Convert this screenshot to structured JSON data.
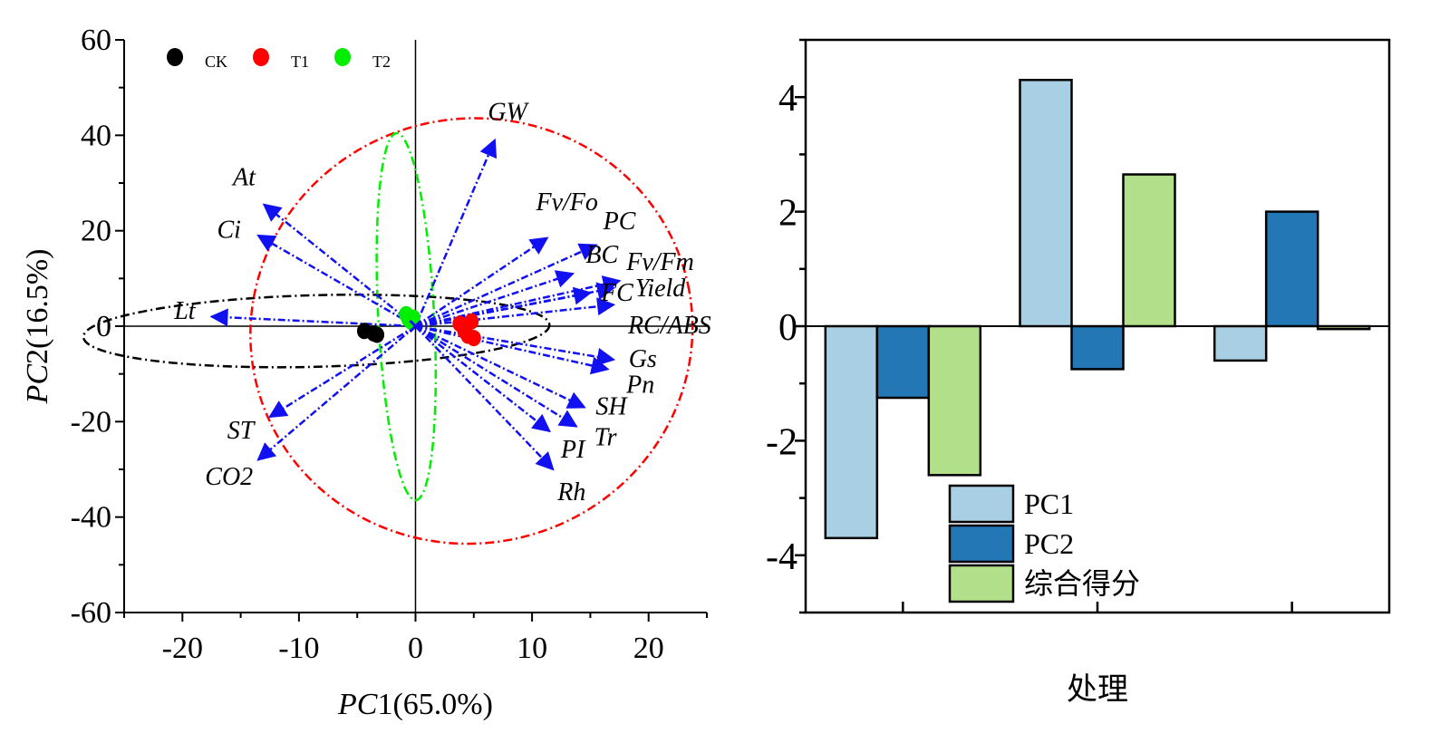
{
  "chart_data": [
    {
      "type": "scatter",
      "subtype": "pca-biplot",
      "xlabel_italic": "PC",
      "xlabel_rest": "1(65.0%)",
      "ylabel_italic": "PC",
      "ylabel_rest": "2(16.5%)",
      "xlim": [
        -25,
        25
      ],
      "ylim": [
        -60,
        60
      ],
      "xticks": [
        -20,
        -10,
        0,
        10,
        20
      ],
      "yticks": [
        -60,
        -40,
        -20,
        0,
        20,
        40,
        60
      ],
      "groups": [
        {
          "name": "CK",
          "color": "#000000",
          "points": [
            [
              -4.4,
              -1.0
            ],
            [
              -3.6,
              -1.5
            ],
            [
              -3.3,
              -1.8
            ]
          ],
          "ellipse": {
            "cx": -8.5,
            "cy": -1,
            "rx": 20,
            "ry": 7.5,
            "angle": -1.5
          }
        },
        {
          "name": "T1",
          "color": "#ff0000",
          "points": [
            [
              3.8,
              0.5
            ],
            [
              4.2,
              -1.0
            ],
            [
              4.5,
              -2.0
            ],
            [
              4.8,
              1.0
            ],
            [
              5.0,
              -2.5
            ]
          ],
          "ellipse": {
            "cx": 4.8,
            "cy": -1,
            "rx": 19,
            "ry": 44.5,
            "angle": -12
          }
        },
        {
          "name": "T2",
          "color": "#00ee00",
          "points": [
            [
              -0.8,
              2.5
            ],
            [
              -0.6,
              1.5
            ],
            [
              -0.4,
              1.0
            ],
            [
              -0.2,
              1.8
            ]
          ],
          "ellipse": {
            "cx": -0.8,
            "cy": 2,
            "rx": 2.4,
            "ry": 38.5,
            "angle": -3
          }
        }
      ],
      "loadings": [
        {
          "name": "GW",
          "x": 6.8,
          "y": 39,
          "italic": false,
          "lx": 7.9,
          "ly": 43.2
        },
        {
          "name": "At",
          "x": -13,
          "y": 25.5,
          "italic": true,
          "lx": -14.7,
          "ly": 29.5
        },
        {
          "name": "Ci",
          "x": -13.5,
          "y": 19,
          "italic": true,
          "lx": -16,
          "ly": 18.5
        },
        {
          "name": "Lt",
          "x": -17.5,
          "y": 2,
          "italic": true,
          "lx": -19.8,
          "ly": 1.5
        },
        {
          "name": "Fv/Fo",
          "x": 11.3,
          "y": 18.5,
          "italic": true,
          "lx": 13,
          "ly": 24.3
        },
        {
          "name": "PC",
          "x": 15.5,
          "y": 17,
          "italic": true,
          "lx": 17.5,
          "ly": 20.3
        },
        {
          "name": "BC",
          "x": 13.5,
          "y": 11,
          "italic": true,
          "lx": 16,
          "ly": 13.3
        },
        {
          "name": "Fv/Fm",
          "x": 17.5,
          "y": 9.5,
          "italic": true,
          "lx": 21,
          "ly": 11.8
        },
        {
          "name": "Yield",
          "x": 17,
          "y": 8,
          "italic": true,
          "lx": 21,
          "ly": 6.3
        },
        {
          "name": "FC",
          "x": 15,
          "y": 7,
          "italic": true,
          "lx": 17.3,
          "ly": 5.3
        },
        {
          "name": "RC/ABS",
          "x": 17,
          "y": 4.5,
          "italic": true,
          "lx": 21.8,
          "ly": -1.5
        },
        {
          "name": "Gs",
          "x": 17,
          "y": -7,
          "italic": true,
          "lx": 19.5,
          "ly": -8.5
        },
        {
          "name": "Pn",
          "x": 16.5,
          "y": -9,
          "italic": true,
          "lx": 19.3,
          "ly": -14
        },
        {
          "name": "SH",
          "x": 14.5,
          "y": -17,
          "italic": true,
          "lx": 16.8,
          "ly": -18.5
        },
        {
          "name": "Tr",
          "x": 13.8,
          "y": -21,
          "italic": true,
          "lx": 16.3,
          "ly": -25
        },
        {
          "name": "PI",
          "x": 11.5,
          "y": -22,
          "italic": true,
          "lx": 13.5,
          "ly": -27.5
        },
        {
          "name": "Rh",
          "x": 11.8,
          "y": -30,
          "italic": true,
          "lx": 13.4,
          "ly": -36.5
        },
        {
          "name": "ST",
          "x": -12.5,
          "y": -19,
          "italic": true,
          "lx": -15,
          "ly": -23.5
        },
        {
          "name": "CO2",
          "x": -13.5,
          "y": -28,
          "italic": true,
          "lx": -16,
          "ly": -33.2
        }
      ],
      "arrow_color": "#1010f0"
    },
    {
      "type": "bar",
      "xlabel": "处理",
      "ylim": [
        -5,
        5
      ],
      "yticks": [
        -4,
        -2,
        0,
        2,
        4
      ],
      "categories": [
        "",
        "",
        ""
      ],
      "series": [
        {
          "name": "PC1",
          "color": "#a8cfe3",
          "values": [
            -3.7,
            4.3,
            -0.6
          ]
        },
        {
          "name": "PC2",
          "color": "#2277b4",
          "values": [
            -1.25,
            -0.75,
            2.0
          ]
        },
        {
          "name": "综合得分",
          "color": "#b2df8a",
          "values": [
            -2.6,
            2.65,
            -0.05
          ]
        }
      ],
      "legend": "lower-center"
    }
  ]
}
